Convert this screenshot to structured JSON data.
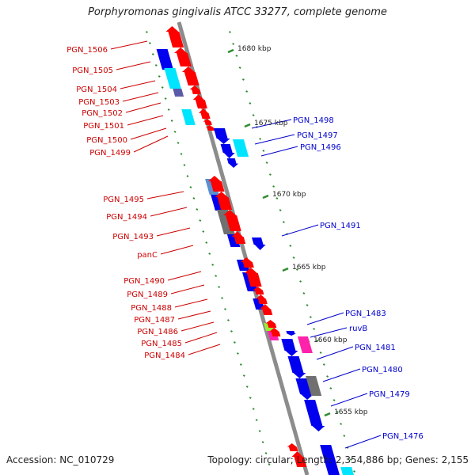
{
  "title": "Porphyromonas gingivalis ATCC 33277, complete genome",
  "footer": {
    "accession": "Accession: NC_010729",
    "summary": "Topology: circular; Length: 2,354,886 bp; Genes: 2,155"
  },
  "colors": {
    "backbone": "#8c8c8c",
    "tick": "#2e8b2e",
    "left_label": "#cc0000",
    "right_label": "#0000cc",
    "red": "#ff0000",
    "blue": "#0000ee",
    "cyan": "#00e5ff",
    "skyblue": "#22aaff",
    "steelblue": "#5a8fd0",
    "slate": "#5a5aa8",
    "gray": "#707070",
    "magenta": "#ff22aa",
    "lime": "#99ee33"
  },
  "kbp_marks": [
    "1680 kbp",
    "1675 kbp",
    "1670 kbp",
    "1665 kbp",
    "1660 kbp",
    "1655 kbp"
  ],
  "left_labels": [
    "PGN_1506",
    "PGN_1505",
    "PGN_1504",
    "PGN_1503",
    "PGN_1502",
    "PGN_1501",
    "PGN_1500",
    "PGN_1499",
    "PGN_1495",
    "PGN_1494",
    "PGN_1493",
    "panC",
    "PGN_1490",
    "PGN_1489",
    "PGN_1488",
    "PGN_1487",
    "PGN_1486",
    "PGN_1485",
    "PGN_1484"
  ],
  "right_labels": [
    "PGN_1498",
    "PGN_1497",
    "PGN_1496",
    "PGN_1491",
    "PGN_1483",
    "ruvB",
    "PGN_1481",
    "PGN_1480",
    "PGN_1479",
    "PGN_1476"
  ]
}
